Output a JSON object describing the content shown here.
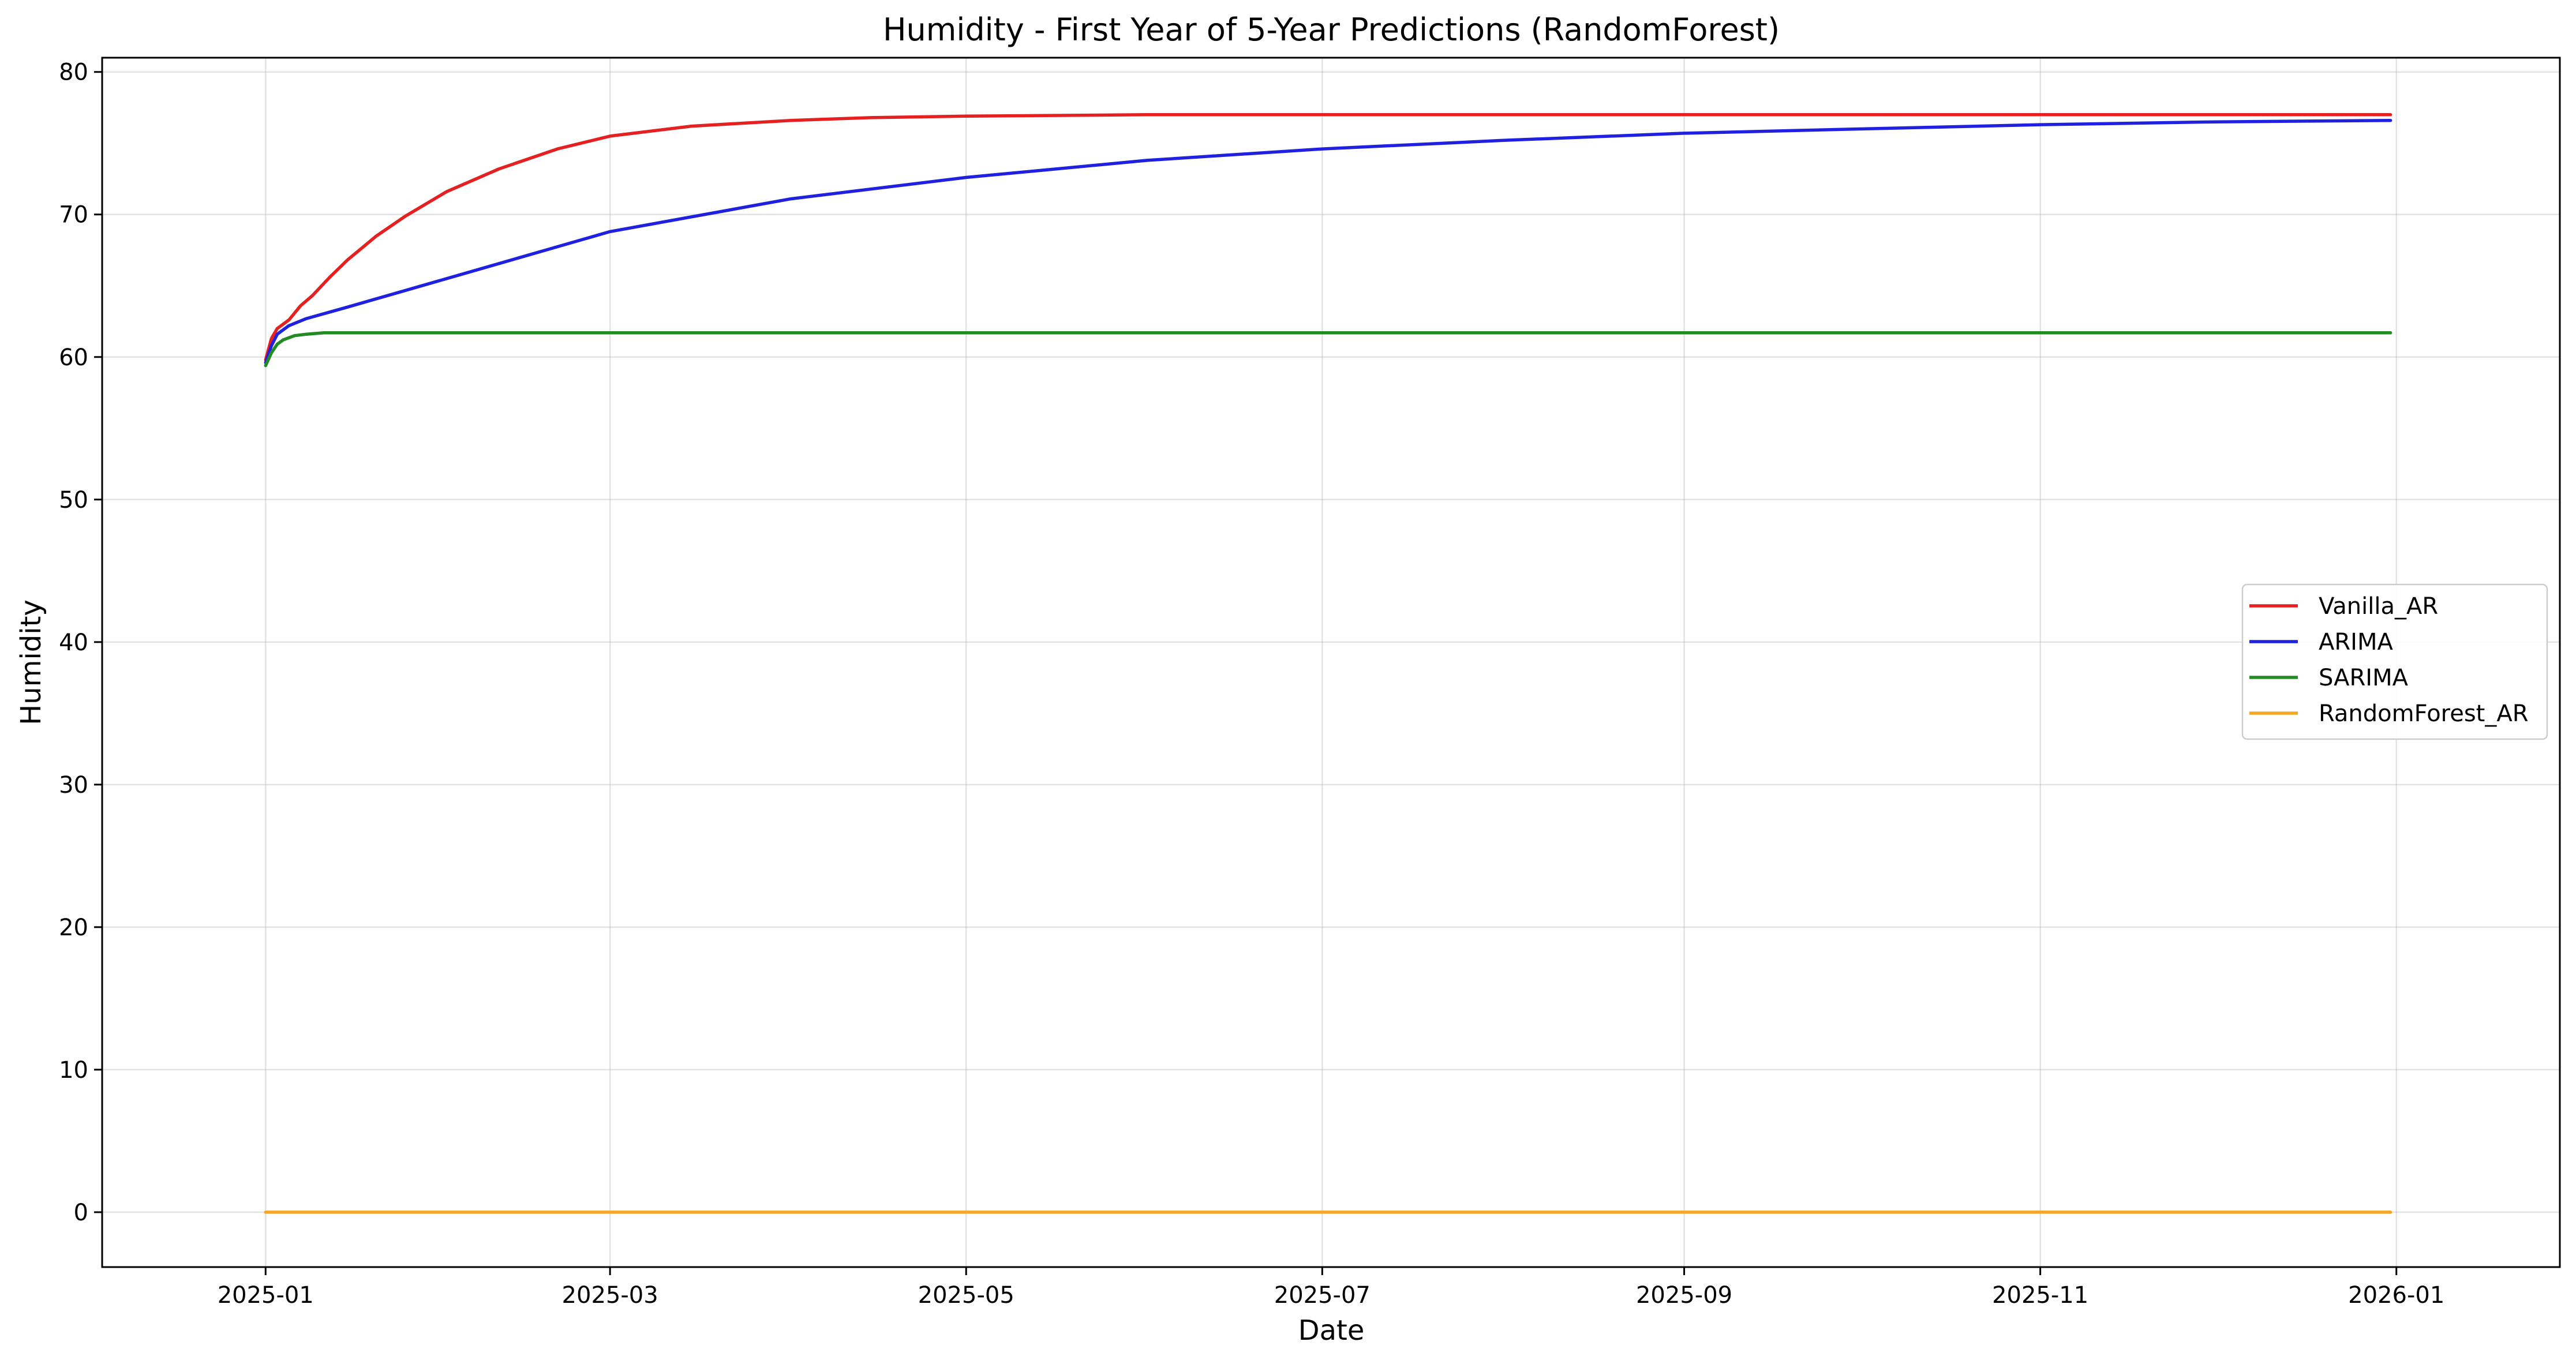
{
  "chart_data": {
    "type": "line",
    "title": "Humidity - First Year of 5-Year Predictions (RandomForest)",
    "xlabel": "Date",
    "ylabel": "Humidity",
    "xlim": [
      "2024-12-04",
      "2026-01-29"
    ],
    "ylim": [
      -3.85,
      81.0
    ],
    "grid": true,
    "legend_position": "center-right",
    "x_ticks": [
      "2025-01-01",
      "2025-03-01",
      "2025-05-01",
      "2025-07-01",
      "2025-09-01",
      "2025-11-01",
      "2026-01-01"
    ],
    "x_tick_labels": [
      "2025-01",
      "2025-03",
      "2025-05",
      "2025-07",
      "2025-09",
      "2025-11",
      "2026-01"
    ],
    "y_ticks": [
      0,
      10,
      20,
      30,
      40,
      50,
      60,
      70,
      80
    ],
    "y_tick_labels": [
      "0",
      "10",
      "20",
      "30",
      "40",
      "50",
      "60",
      "70",
      "80"
    ],
    "series": [
      {
        "name": "Vanilla_AR",
        "color": "#e52020",
        "x": [
          "2025-01-01",
          "2025-01-02",
          "2025-01-03",
          "2025-01-05",
          "2025-01-07",
          "2025-01-09",
          "2025-01-12",
          "2025-01-15",
          "2025-01-20",
          "2025-01-25",
          "2025-02-01",
          "2025-02-10",
          "2025-02-20",
          "2025-03-01",
          "2025-03-15",
          "2025-04-01",
          "2025-04-15",
          "2025-05-01",
          "2025-06-01",
          "2025-07-01",
          "2025-09-01",
          "2025-11-01",
          "2025-12-31"
        ],
        "y": [
          59.8,
          61.3,
          62.0,
          62.6,
          63.6,
          64.3,
          65.6,
          66.8,
          68.5,
          69.9,
          71.6,
          73.2,
          74.6,
          75.5,
          76.2,
          76.6,
          76.8,
          76.9,
          77.0,
          77.0,
          77.0,
          77.0,
          77.0
        ]
      },
      {
        "name": "ARIMA",
        "color": "#2020e0",
        "x": [
          "2025-01-01",
          "2025-01-02",
          "2025-01-03",
          "2025-01-05",
          "2025-01-08",
          "2025-01-15",
          "2025-02-01",
          "2025-03-01",
          "2025-04-01",
          "2025-05-01",
          "2025-06-01",
          "2025-07-01",
          "2025-08-01",
          "2025-09-01",
          "2025-10-01",
          "2025-11-01",
          "2025-12-01",
          "2025-12-31"
        ],
        "y": [
          59.6,
          60.8,
          61.6,
          62.2,
          62.7,
          63.5,
          65.5,
          68.8,
          71.1,
          72.6,
          73.8,
          74.6,
          75.2,
          75.7,
          76.0,
          76.3,
          76.5,
          76.6
        ]
      },
      {
        "name": "SARIMA",
        "color": "#228b22",
        "x": [
          "2025-01-01",
          "2025-01-02",
          "2025-01-03",
          "2025-01-04",
          "2025-01-06",
          "2025-01-08",
          "2025-01-11",
          "2025-01-15",
          "2025-02-01",
          "2025-12-31"
        ],
        "y": [
          59.4,
          60.3,
          60.9,
          61.2,
          61.5,
          61.6,
          61.7,
          61.7,
          61.7,
          61.7
        ]
      },
      {
        "name": "RandomForest_AR",
        "color": "#f5a623",
        "x": [
          "2025-01-01",
          "2025-12-31"
        ],
        "y": [
          0,
          0
        ]
      }
    ]
  }
}
